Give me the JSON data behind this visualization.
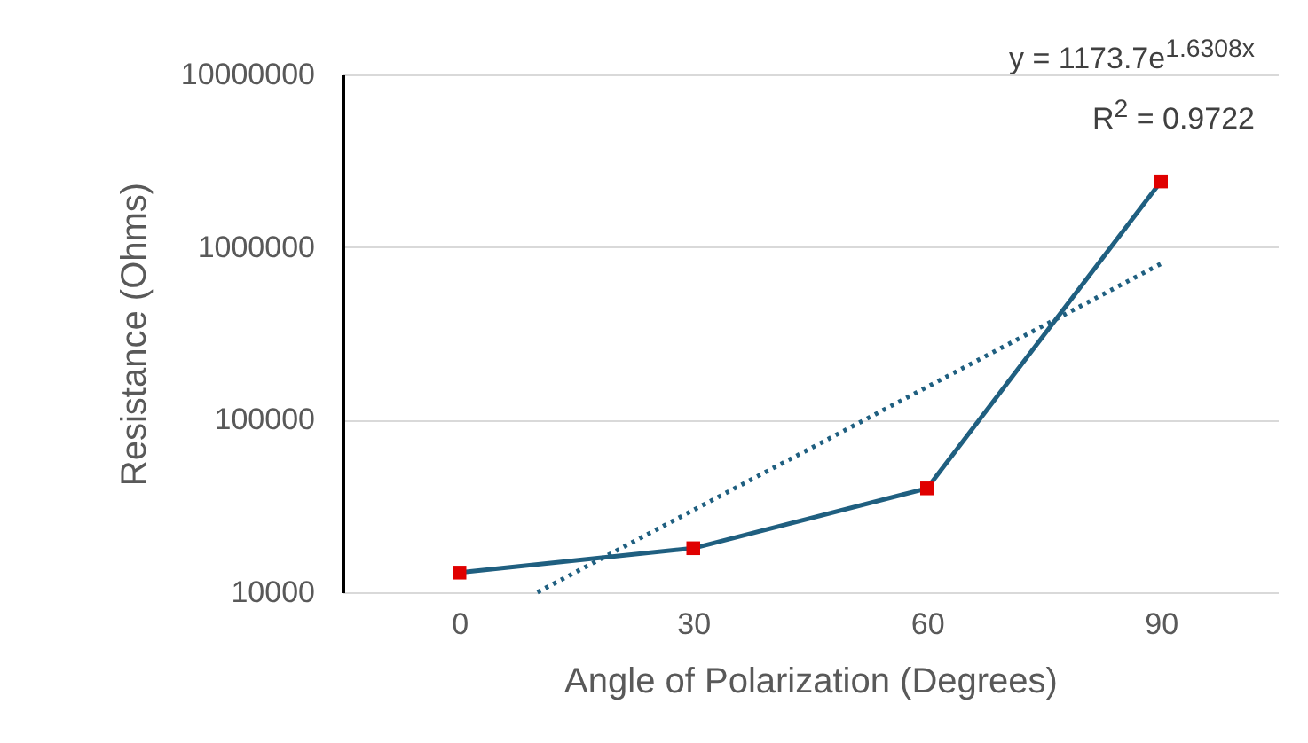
{
  "chart_data": {
    "type": "line",
    "xlabel": "Angle of Polarization (Degrees)",
    "ylabel": "Resistance (Ohms)",
    "x": [
      0,
      30,
      60,
      90
    ],
    "xlim": [
      -15,
      105
    ],
    "xticks": [
      0,
      30,
      60,
      90
    ],
    "log": "y",
    "ylim": [
      10000,
      10000000
    ],
    "yticks": [
      10000,
      100000,
      1000000,
      10000000
    ],
    "grid": "y",
    "series": [
      {
        "color": "#1f5f80",
        "marker": "none",
        "line_style": "solid",
        "values": [
          13000,
          18000,
          40000,
          2400000
        ]
      },
      {
        "type": "scatter",
        "color": "#e00000",
        "marker": "square",
        "values": [
          13000,
          18000,
          40000,
          2400000
        ]
      },
      {
        "type": "line",
        "color": "#1f5f80",
        "marker": "none",
        "line_style": "dotted",
        "x": [
          10,
          90
        ],
        "values": [
          10000,
          800000
        ]
      }
    ],
    "annotations": [
      "y = 1173.7e$^{1.6308x}$",
      "R$^{2}$ = 0.9722"
    ]
  }
}
